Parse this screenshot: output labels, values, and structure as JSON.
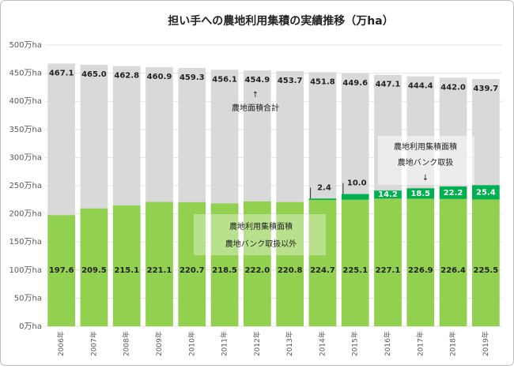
{
  "chart_data": {
    "type": "bar",
    "title": "担い手への農地利用集積の実績推移（万ha）",
    "categories": [
      "2006年",
      "2007年",
      "2008年",
      "2009年",
      "2010年",
      "2011年",
      "2012年",
      "2013年",
      "2014年",
      "2015年",
      "2016年",
      "2017年",
      "2018年",
      "2019年"
    ],
    "series": [
      {
        "name": "農地面積合計",
        "color": "#d9d9d9",
        "role": "total",
        "values": [
          467.1,
          465.0,
          462.8,
          460.9,
          459.3,
          456.1,
          454.9,
          453.7,
          451.8,
          449.6,
          447.1,
          444.4,
          442.0,
          439.7
        ],
        "value_labels": [
          "467.1",
          "465.0",
          "462.8",
          "460.9",
          "459.3",
          "456.1",
          "454.9",
          "453.7",
          "451.8",
          "449.6",
          "447.1",
          "444.4",
          "442.0",
          "439.7"
        ]
      },
      {
        "name": "農地バンク取扱以外",
        "color": "#92d050",
        "values": [
          197.6,
          209.5,
          215.1,
          221.1,
          220.7,
          218.5,
          222.0,
          220.8,
          224.7,
          225.1,
          227.1,
          226.9,
          226.4,
          225.5
        ],
        "value_labels": [
          "197.6",
          "209.5",
          "215.1",
          "221.1",
          "220.7",
          "218.5",
          "222.0",
          "220.8",
          "224.7",
          "225.1",
          "227.1",
          "226.9",
          "226.4",
          "225.5"
        ]
      },
      {
        "name": "農地バンク取扱",
        "color": "#00b050",
        "values": [
          null,
          null,
          null,
          null,
          null,
          null,
          null,
          null,
          2.4,
          10.0,
          14.2,
          18.5,
          22.2,
          25.4
        ],
        "value_labels": [
          null,
          null,
          null,
          null,
          null,
          null,
          null,
          null,
          "2.4",
          "10.0",
          "14.2",
          "18.5",
          "22.2",
          "25.4"
        ]
      }
    ],
    "annotations": {
      "total": {
        "arrow": "↑",
        "text": "農地面積合計"
      },
      "bank": {
        "line1": "農地利用集積面積",
        "line2": "農地バンク取扱",
        "arrow": "↓"
      },
      "other": {
        "line1": "農地利用集積面積",
        "line2": "農地バンク取扱以外"
      }
    },
    "ylim": [
      0,
      500
    ],
    "yticks": [
      {
        "value": 0,
        "label": "0万ha"
      },
      {
        "value": 50,
        "label": "50万ha"
      },
      {
        "value": 100,
        "label": "100万ha"
      },
      {
        "value": 150,
        "label": "150万ha"
      },
      {
        "value": 200,
        "label": "200万ha"
      },
      {
        "value": 250,
        "label": "250万ha"
      },
      {
        "value": 300,
        "label": "300万ha"
      },
      {
        "value": 350,
        "label": "350万ha"
      },
      {
        "value": 400,
        "label": "400万ha"
      },
      {
        "value": 450,
        "label": "450万ha"
      },
      {
        "value": 500,
        "label": "500万ha"
      }
    ],
    "grid": true
  }
}
